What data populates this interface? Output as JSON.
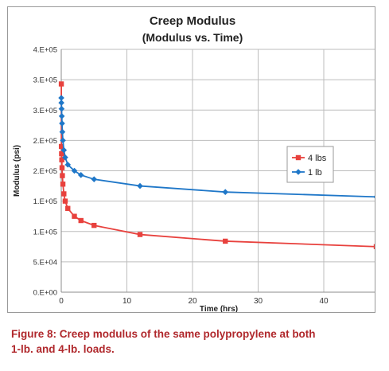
{
  "chart_data": {
    "type": "line",
    "title": "Creep Modulus",
    "subtitle": "(Modulus vs. Time)",
    "xlabel": "Time (hrs)",
    "ylabel": "Modulus (psi)",
    "xlim": [
      0,
      48
    ],
    "ylim": [
      0,
      400000
    ],
    "xticks": [
      0,
      10,
      20,
      30,
      40
    ],
    "xtick_labels": [
      "0",
      "10",
      "20",
      "30",
      "40"
    ],
    "yticks": [
      0,
      50000,
      100000,
      150000,
      200000,
      250000,
      300000,
      350000,
      400000
    ],
    "ytick_labels": [
      "0.E+00",
      "5.E+04",
      "1.E+05",
      "1.E+05",
      "2.E+05",
      "2.E+05",
      "3.E+05",
      "3.E+05",
      "4.E+05"
    ],
    "grid": true,
    "legend_position": "right",
    "series": [
      {
        "name": "4 lbs",
        "color": "#e8413d",
        "marker": "square",
        "x": [
          0.01,
          0.02,
          0.05,
          0.08,
          0.12,
          0.17,
          0.25,
          0.4,
          0.6,
          1,
          2,
          3,
          5,
          12,
          25,
          48
        ],
        "y": [
          343000,
          240000,
          228000,
          218000,
          205000,
          192000,
          178000,
          162000,
          150000,
          138000,
          125000,
          118000,
          110000,
          95000,
          84000,
          75000
        ]
      },
      {
        "name": "1 lb",
        "color": "#1f77c8",
        "marker": "diamond",
        "x": [
          0.01,
          0.02,
          0.05,
          0.08,
          0.12,
          0.17,
          0.25,
          0.4,
          0.6,
          1,
          2,
          3,
          5,
          12,
          25,
          48
        ],
        "y": [
          320000,
          312000,
          302000,
          290000,
          278000,
          264000,
          250000,
          234000,
          222000,
          210000,
          200000,
          193000,
          186000,
          175000,
          165000,
          157000
        ]
      }
    ]
  },
  "caption": {
    "line1": "Figure 8: Creep modulus of the same polypropylene at both",
    "line2": "1-lb. and 4-lb. loads."
  }
}
